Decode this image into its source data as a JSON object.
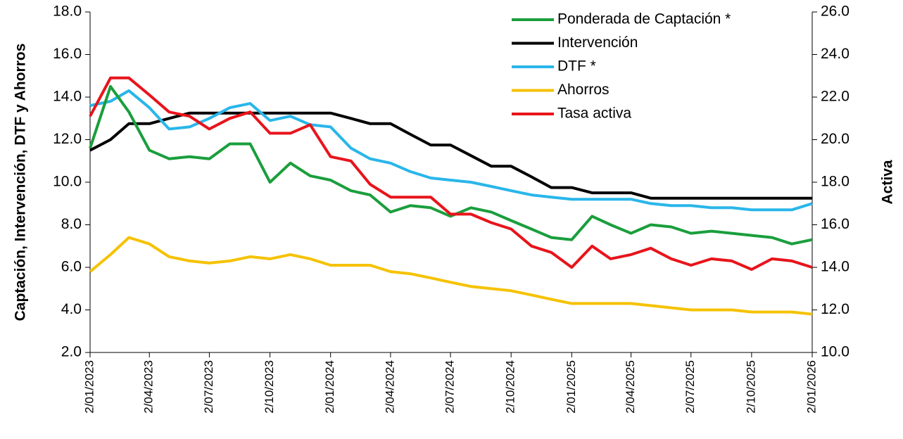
{
  "chart_data": {
    "type": "line",
    "y_label": "Captación, Intervención, DTF y Ahorros",
    "y2_label": "Activa",
    "x": [
      "2/01/2023",
      "2/02/2023",
      "2/03/2023",
      "2/04/2023",
      "2/05/2023",
      "2/06/2023",
      "2/07/2023",
      "2/08/2023",
      "2/09/2023",
      "2/10/2023",
      "2/11/2023",
      "2/12/2023",
      "2/01/2024",
      "2/02/2024",
      "2/03/2024",
      "2/04/2024",
      "2/05/2024",
      "2/06/2024",
      "2/07/2024",
      "2/08/2024",
      "2/09/2024",
      "2/10/2024",
      "2/11/2024",
      "2/12/2024",
      "2/01/2025",
      "2/02/2025",
      "2/03/2025",
      "2/04/2025",
      "2/05/2025",
      "2/06/2025",
      "2/07/2025",
      "2/08/2025",
      "2/09/2025",
      "2/10/2025",
      "2/11/2025",
      "2/12/2025",
      "2/01/2026"
    ],
    "xticks": [
      "2/01/2023",
      "2/04/2023",
      "2/07/2023",
      "2/10/2023",
      "2/01/2024",
      "2/04/2024",
      "2/07/2024",
      "2/10/2024",
      "2/01/2025",
      "2/04/2025",
      "2/07/2025",
      "2/10/2025",
      "2/01/2026"
    ],
    "ylim": [
      2,
      18
    ],
    "yticks": [
      {
        "value": 2,
        "label": "2.0"
      },
      {
        "value": 4,
        "label": "4.0"
      },
      {
        "value": 6,
        "label": "6.0"
      },
      {
        "value": 8,
        "label": "8.0"
      },
      {
        "value": 10,
        "label": "10.0"
      },
      {
        "value": 12,
        "label": "12.0"
      },
      {
        "value": 14,
        "label": "14.0"
      },
      {
        "value": 16,
        "label": "16.0"
      },
      {
        "value": 18,
        "label": "18.0"
      }
    ],
    "y2lim": [
      10,
      26
    ],
    "y2ticks": [
      {
        "value": 10,
        "label": "10.0"
      },
      {
        "value": 12,
        "label": "12.0"
      },
      {
        "value": 14,
        "label": "14.0"
      },
      {
        "value": 16,
        "label": "16.0"
      },
      {
        "value": 18,
        "label": "18.0"
      },
      {
        "value": 20,
        "label": "20.0"
      },
      {
        "value": 22,
        "label": "22.0"
      },
      {
        "value": 24,
        "label": "24.0"
      },
      {
        "value": 26,
        "label": "26.0"
      }
    ],
    "legend": "upper right",
    "series": [
      {
        "name": "Ponderada de Captación *",
        "color": "#1a9e3c",
        "values": [
          11.6,
          14.5,
          13.3,
          11.5,
          11.1,
          11.2,
          11.1,
          11.8,
          11.8,
          10.0,
          10.9,
          10.3,
          10.1,
          9.6,
          9.4,
          8.6,
          8.9,
          8.8,
          8.4,
          8.8,
          8.6,
          8.2,
          7.8,
          7.4,
          7.3,
          8.4,
          8.0,
          7.6,
          8.0,
          7.9,
          7.6,
          7.7,
          7.6,
          7.5,
          7.4,
          7.1,
          7.3
        ]
      },
      {
        "name": "Intervención",
        "color": "#000000",
        "values": [
          11.5,
          12.0,
          12.75,
          12.75,
          13.0,
          13.25,
          13.25,
          13.25,
          13.25,
          13.25,
          13.25,
          13.25,
          13.25,
          13.0,
          12.75,
          12.75,
          12.25,
          11.75,
          11.75,
          11.25,
          10.75,
          10.75,
          10.25,
          9.75,
          9.75,
          9.5,
          9.5,
          9.5,
          9.25,
          9.25,
          9.25,
          9.25,
          9.25,
          9.25,
          9.25,
          9.25,
          9.25
        ]
      },
      {
        "name": "DTF *",
        "color": "#29b6ea",
        "values": [
          13.6,
          13.8,
          14.3,
          13.5,
          12.5,
          12.6,
          13.0,
          13.5,
          13.7,
          12.9,
          13.1,
          12.7,
          12.6,
          11.6,
          11.1,
          10.9,
          10.5,
          10.2,
          10.1,
          10.0,
          9.8,
          9.6,
          9.4,
          9.3,
          9.2,
          9.2,
          9.2,
          9.2,
          9.0,
          8.9,
          8.9,
          8.8,
          8.8,
          8.7,
          8.7,
          8.7,
          9.0
        ]
      },
      {
        "name": "Ahorros",
        "color": "#f5c200",
        "values": [
          5.8,
          6.6,
          7.4,
          7.1,
          6.5,
          6.3,
          6.2,
          6.3,
          6.5,
          6.4,
          6.6,
          6.4,
          6.1,
          6.1,
          6.1,
          5.8,
          5.7,
          5.5,
          5.3,
          5.1,
          5.0,
          4.9,
          4.7,
          4.5,
          4.3,
          4.3,
          4.3,
          4.3,
          4.2,
          4.1,
          4.0,
          4.0,
          4.0,
          3.9,
          3.9,
          3.9,
          3.8
        ]
      },
      {
        "name": "Tasa activa",
        "color": "#e8141b",
        "axis": "y2",
        "values": [
          21.1,
          22.9,
          22.9,
          22.1,
          21.3,
          21.1,
          20.5,
          21.0,
          21.3,
          20.3,
          20.3,
          20.7,
          19.2,
          19.0,
          17.9,
          17.3,
          17.3,
          17.3,
          16.5,
          16.5,
          16.1,
          15.8,
          15.0,
          14.7,
          14.0,
          15.0,
          14.4,
          14.6,
          14.9,
          14.4,
          14.1,
          14.4,
          14.3,
          13.9,
          14.4,
          14.3,
          14.0
        ]
      }
    ]
  }
}
